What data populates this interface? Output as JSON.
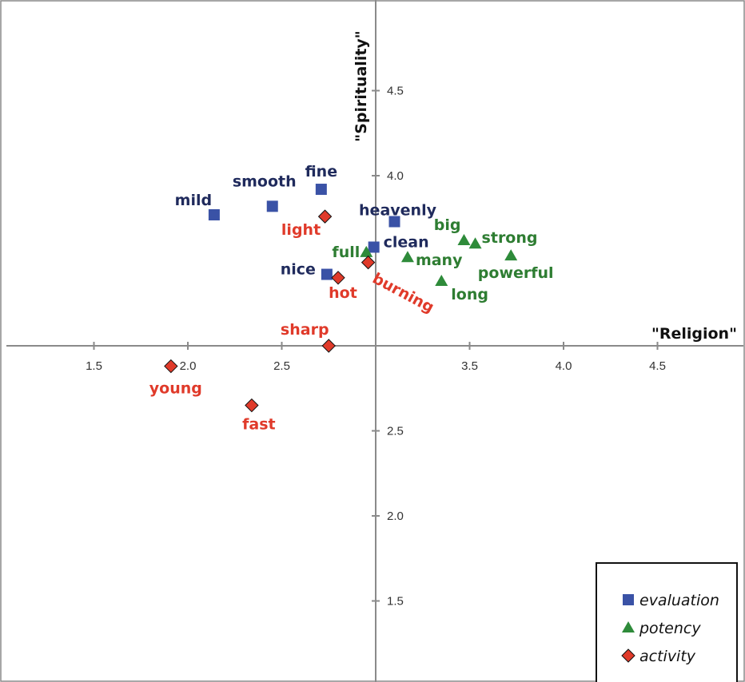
{
  "chart_data": {
    "type": "scatter",
    "xlabel": "\"Religion\"",
    "ylabel": "\"Spirituality\"",
    "x_ticks": [
      {
        "value": 1.5,
        "label": "1.5"
      },
      {
        "value": 2.0,
        "label": "2.0"
      },
      {
        "value": 2.5,
        "label": "2.5"
      },
      {
        "value": 3.5,
        "label": "3.5"
      },
      {
        "value": 4.0,
        "label": "4.0"
      },
      {
        "value": 4.5,
        "label": "4.5"
      }
    ],
    "y_ticks": [
      {
        "value": 1.5,
        "label": "1.5"
      },
      {
        "value": 2.0,
        "label": "2.0"
      },
      {
        "value": 2.5,
        "label": "2.5"
      },
      {
        "value": 4.0,
        "label": "4.0"
      },
      {
        "value": 4.5,
        "label": "4.5"
      }
    ],
    "xlim": [
      1.0,
      5.0
    ],
    "ylim": [
      1.0,
      5.0
    ],
    "axis_cross": {
      "x": 3.0,
      "y": 3.0
    },
    "grid": false,
    "legend_position": "bottom-right",
    "series": [
      {
        "name": "evaluation",
        "marker": "square",
        "color": "#3a52a6",
        "label_color": "#1f2a5c",
        "points": [
          {
            "label": "mild",
            "x": 2.14,
            "y": 3.77
          },
          {
            "label": "smooth",
            "x": 2.45,
            "y": 3.82
          },
          {
            "label": "fine",
            "x": 2.71,
            "y": 3.92
          },
          {
            "label": "heavenly",
            "x": 3.1,
            "y": 3.73
          },
          {
            "label": "clean",
            "x": 2.99,
            "y": 3.58
          },
          {
            "label": "nice",
            "x": 2.74,
            "y": 3.42
          }
        ]
      },
      {
        "name": "potency",
        "marker": "triangle",
        "color": "#2e8b3a",
        "label_color": "#2e7d32",
        "points": [
          {
            "label": "full",
            "x": 2.95,
            "y": 3.55
          },
          {
            "label": "big",
            "x": 3.47,
            "y": 3.62
          },
          {
            "label": "strong",
            "x": 3.53,
            "y": 3.6
          },
          {
            "label": "many",
            "x": 3.17,
            "y": 3.52
          },
          {
            "label": "powerful",
            "x": 3.72,
            "y": 3.53
          },
          {
            "label": "long",
            "x": 3.35,
            "y": 3.38
          }
        ]
      },
      {
        "name": "activity",
        "marker": "diamond",
        "color": "#e03a2a",
        "label_color": "#e03a2a",
        "points": [
          {
            "label": "light",
            "x": 2.73,
            "y": 3.76
          },
          {
            "label": "burning",
            "x": 2.96,
            "y": 3.49
          },
          {
            "label": "hot",
            "x": 2.8,
            "y": 3.4
          },
          {
            "label": "sharp",
            "x": 2.75,
            "y": 3.0
          },
          {
            "label": "young",
            "x": 1.91,
            "y": 2.88
          },
          {
            "label": "fast",
            "x": 2.34,
            "y": 2.65
          }
        ]
      }
    ]
  }
}
